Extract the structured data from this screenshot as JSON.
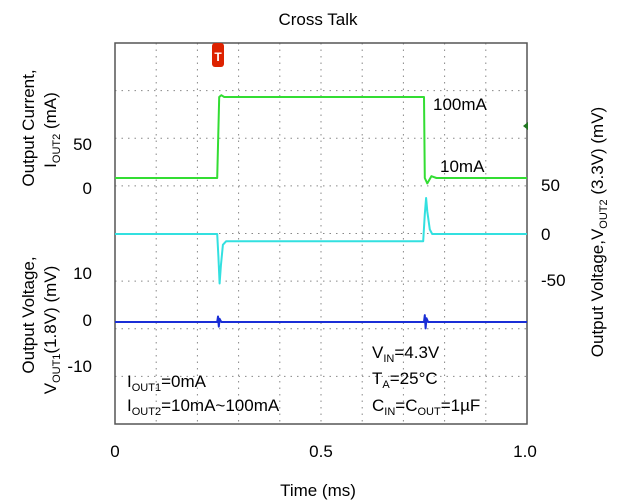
{
  "chart_data": {
    "type": "line",
    "title": "Cross Talk",
    "xlabel": "Time (ms)",
    "xlim": [
      0,
      1.0
    ],
    "x_ticks": [
      "0",
      "0.5",
      "1.0"
    ],
    "grid": true,
    "left_axis": {
      "upper_label": {
        "line1": "Output Current,",
        "line2_main": "I",
        "line2_sub": "OUT2",
        "line2_tail": " (mA)"
      },
      "upper_ticks": [
        "50",
        "0"
      ],
      "lower_label": {
        "line1": "Output Voltage,",
        "line2_main": "V",
        "line2_sub": "OUT1",
        "line2_tail": "(1.8V) (mV)"
      },
      "lower_ticks": [
        "10",
        "0",
        "-10"
      ]
    },
    "right_axis": {
      "label": {
        "main": "Output Voltage,V",
        "sub": "OUT2",
        "tail": " (3.3V) (mV)"
      },
      "ticks": [
        "50",
        "0",
        "-50"
      ]
    },
    "annotations": {
      "high_current": "100mA",
      "low_current": "10mA",
      "iout1": {
        "main": "I",
        "sub": "OUT1",
        "tail": "=0mA"
      },
      "iout2": {
        "main": "I",
        "sub": "OUT2",
        "tail": "=10mA~100mA"
      },
      "vin": {
        "main": "V",
        "sub": "IN",
        "tail": "=4.3V"
      },
      "ta": {
        "main": "T",
        "sub": "A",
        "tail": "=25°C"
      },
      "cap": {
        "main1": "C",
        "sub1": "IN",
        "mid": "=C",
        "sub2": "OUT",
        "tail": "=1µF"
      }
    },
    "trigger_marker": "T",
    "series": [
      {
        "name": "I_OUT2",
        "color": "#33dd33",
        "unit": "mA",
        "x": [
          0,
          0.248,
          0.253,
          0.258,
          0.265,
          0.75,
          0.752,
          0.758,
          0.768,
          0.78,
          1.0
        ],
        "y": [
          10,
          10,
          100,
          102,
          100,
          100,
          10,
          4,
          12,
          10,
          10
        ]
      },
      {
        "name": "V_OUT2 (3.3V)",
        "color": "#33e0e0",
        "unit": "mV",
        "x": [
          0,
          0.248,
          0.251,
          0.254,
          0.257,
          0.262,
          0.27,
          0.748,
          0.752,
          0.755,
          0.758,
          0.764,
          0.77,
          1.0
        ],
        "y": [
          0,
          0,
          -25,
          -55,
          -35,
          -12,
          -8,
          -8,
          22,
          40,
          25,
          5,
          0,
          0
        ]
      },
      {
        "name": "V_OUT1 (1.8V)",
        "color": "#1a2ed6",
        "unit": "mV",
        "x": [
          0,
          0.248,
          0.25,
          0.252,
          0.254,
          0.258,
          0.75,
          0.752,
          0.754,
          0.756,
          0.76,
          1.0
        ],
        "y": [
          0,
          0,
          1.2,
          -1.0,
          0.7,
          0,
          0,
          1.5,
          -1.4,
          0.8,
          0,
          0
        ]
      }
    ]
  }
}
